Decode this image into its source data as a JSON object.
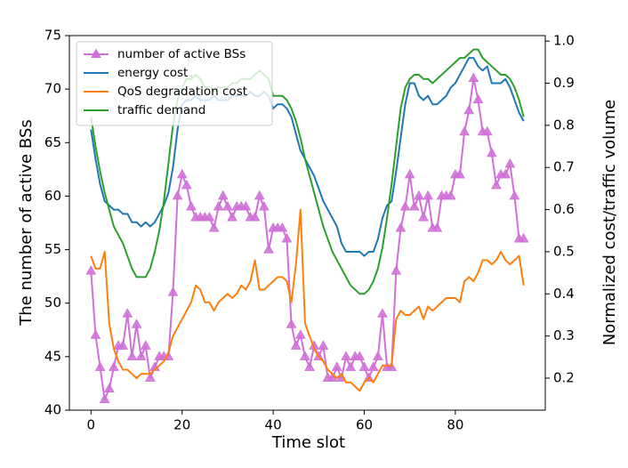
{
  "chart_data": {
    "type": "line",
    "x_label": "Time slot",
    "y_label": "The number of active BSs",
    "y2_label": "Normalized cost/traffic volume",
    "x": [
      0,
      1,
      2,
      3,
      4,
      5,
      6,
      7,
      8,
      9,
      10,
      11,
      12,
      13,
      14,
      15,
      16,
      17,
      18,
      19,
      20,
      21,
      22,
      23,
      24,
      25,
      26,
      27,
      28,
      29,
      30,
      31,
      32,
      33,
      34,
      35,
      36,
      37,
      38,
      39,
      40,
      41,
      42,
      43,
      44,
      45,
      46,
      47,
      48,
      49,
      50,
      51,
      52,
      53,
      54,
      55,
      56,
      57,
      58,
      59,
      60,
      61,
      62,
      63,
      64,
      65,
      66,
      67,
      68,
      69,
      70,
      71,
      72,
      73,
      74,
      75,
      76,
      77,
      78,
      79,
      80,
      81,
      82,
      83,
      84,
      85,
      86,
      87,
      88,
      89,
      90,
      91,
      92,
      93,
      94,
      95
    ],
    "xlim": [
      -4.75,
      99.75
    ],
    "xticks": [
      0,
      20,
      40,
      60,
      80
    ],
    "ylim": [
      40,
      75
    ],
    "yticks": [
      40,
      45,
      50,
      55,
      60,
      65,
      70,
      75
    ],
    "y2lim": [
      0.124,
      1.013
    ],
    "y2ticks": [
      {
        "value": 0.2,
        "label": "0.2"
      },
      {
        "value": 0.3,
        "label": "0.3"
      },
      {
        "value": 0.4,
        "label": "0.4"
      },
      {
        "value": 0.5,
        "label": "0.5"
      },
      {
        "value": 0.6,
        "label": "0.6"
      },
      {
        "value": 0.7,
        "label": "0.7"
      },
      {
        "value": 0.8,
        "label": "0.8"
      },
      {
        "value": 0.9,
        "label": "0.9"
      },
      {
        "value": 1.0,
        "label": "1.0"
      }
    ],
    "legend": "upper left",
    "series": [
      {
        "name": "number of active BSs",
        "color": "#d070d8",
        "marker": "triangle",
        "values": [
          53,
          47,
          44,
          41,
          42,
          44,
          46,
          46,
          49,
          45,
          48,
          45,
          46,
          43,
          44,
          45,
          45,
          45,
          51,
          60,
          62,
          61,
          59,
          58,
          58,
          58,
          58,
          57,
          59,
          60,
          59,
          58,
          59,
          59,
          59,
          58,
          58,
          60,
          59,
          55,
          57,
          57,
          57,
          56,
          48,
          46,
          47,
          45,
          44,
          46,
          45,
          46,
          43,
          43,
          44,
          43,
          45,
          44,
          45,
          45,
          44,
          43,
          44,
          45,
          49,
          44,
          44,
          53,
          57,
          59,
          62,
          59,
          60,
          58,
          60,
          57,
          57,
          60,
          60,
          60,
          62,
          62,
          66,
          68,
          71,
          69,
          66,
          66,
          64,
          61,
          62,
          62,
          63,
          60,
          56,
          56
        ]
      },
      {
        "name": "energy cost",
        "color": "#1f77b4",
        "axis": "y2",
        "values": [
          0.79,
          0.72,
          0.66,
          0.62,
          0.61,
          0.6,
          0.6,
          0.59,
          0.59,
          0.57,
          0.57,
          0.56,
          0.57,
          0.56,
          0.57,
          0.59,
          0.61,
          0.64,
          0.7,
          0.79,
          0.85,
          0.86,
          0.86,
          0.87,
          0.86,
          0.86,
          0.86,
          0.87,
          0.86,
          0.86,
          0.86,
          0.87,
          0.87,
          0.87,
          0.87,
          0.88,
          0.87,
          0.87,
          0.88,
          0.87,
          0.84,
          0.85,
          0.85,
          0.84,
          0.82,
          0.78,
          0.74,
          0.72,
          0.7,
          0.68,
          0.65,
          0.62,
          0.6,
          0.58,
          0.56,
          0.52,
          0.5,
          0.5,
          0.5,
          0.5,
          0.49,
          0.5,
          0.5,
          0.53,
          0.58,
          0.61,
          0.62,
          0.69,
          0.77,
          0.85,
          0.9,
          0.9,
          0.87,
          0.86,
          0.87,
          0.85,
          0.85,
          0.86,
          0.87,
          0.89,
          0.9,
          0.92,
          0.94,
          0.96,
          0.96,
          0.94,
          0.93,
          0.94,
          0.9,
          0.9,
          0.9,
          0.91,
          0.89,
          0.86,
          0.83,
          0.81
        ]
      },
      {
        "name": "QoS degradation cost",
        "color": "#ff7f0e",
        "axis": "y2",
        "values": [
          0.49,
          0.46,
          0.46,
          0.5,
          0.33,
          0.27,
          0.24,
          0.22,
          0.22,
          0.21,
          0.2,
          0.21,
          0.21,
          0.21,
          0.22,
          0.23,
          0.24,
          0.26,
          0.3,
          0.32,
          0.34,
          0.36,
          0.38,
          0.42,
          0.41,
          0.38,
          0.38,
          0.36,
          0.38,
          0.39,
          0.4,
          0.39,
          0.4,
          0.42,
          0.41,
          0.43,
          0.48,
          0.41,
          0.41,
          0.42,
          0.43,
          0.44,
          0.44,
          0.43,
          0.38,
          0.47,
          0.6,
          0.33,
          0.3,
          0.27,
          0.25,
          0.24,
          0.22,
          0.21,
          0.2,
          0.21,
          0.19,
          0.19,
          0.18,
          0.17,
          0.19,
          0.2,
          0.19,
          0.21,
          0.23,
          0.23,
          0.23,
          0.34,
          0.36,
          0.35,
          0.35,
          0.36,
          0.37,
          0.34,
          0.37,
          0.36,
          0.37,
          0.38,
          0.39,
          0.39,
          0.39,
          0.38,
          0.43,
          0.44,
          0.43,
          0.45,
          0.48,
          0.48,
          0.47,
          0.48,
          0.5,
          0.48,
          0.47,
          0.48,
          0.49,
          0.42
        ]
      },
      {
        "name": "traffic demand",
        "color": "#2ca02c",
        "axis": "y2",
        "values": [
          0.82,
          0.75,
          0.69,
          0.64,
          0.6,
          0.56,
          0.54,
          0.52,
          0.49,
          0.46,
          0.44,
          0.44,
          0.44,
          0.46,
          0.5,
          0.55,
          0.62,
          0.71,
          0.8,
          0.86,
          0.89,
          0.91,
          0.91,
          0.92,
          0.91,
          0.89,
          0.89,
          0.88,
          0.89,
          0.89,
          0.89,
          0.9,
          0.9,
          0.91,
          0.91,
          0.91,
          0.92,
          0.93,
          0.92,
          0.91,
          0.87,
          0.87,
          0.87,
          0.86,
          0.84,
          0.81,
          0.77,
          0.72,
          0.68,
          0.64,
          0.6,
          0.56,
          0.53,
          0.5,
          0.48,
          0.46,
          0.44,
          0.42,
          0.41,
          0.4,
          0.4,
          0.41,
          0.43,
          0.46,
          0.51,
          0.58,
          0.66,
          0.75,
          0.84,
          0.89,
          0.91,
          0.92,
          0.92,
          0.91,
          0.91,
          0.9,
          0.91,
          0.92,
          0.93,
          0.94,
          0.95,
          0.96,
          0.96,
          0.97,
          0.98,
          0.98,
          0.96,
          0.95,
          0.94,
          0.93,
          0.92,
          0.92,
          0.91,
          0.89,
          0.86,
          0.82
        ]
      }
    ]
  }
}
